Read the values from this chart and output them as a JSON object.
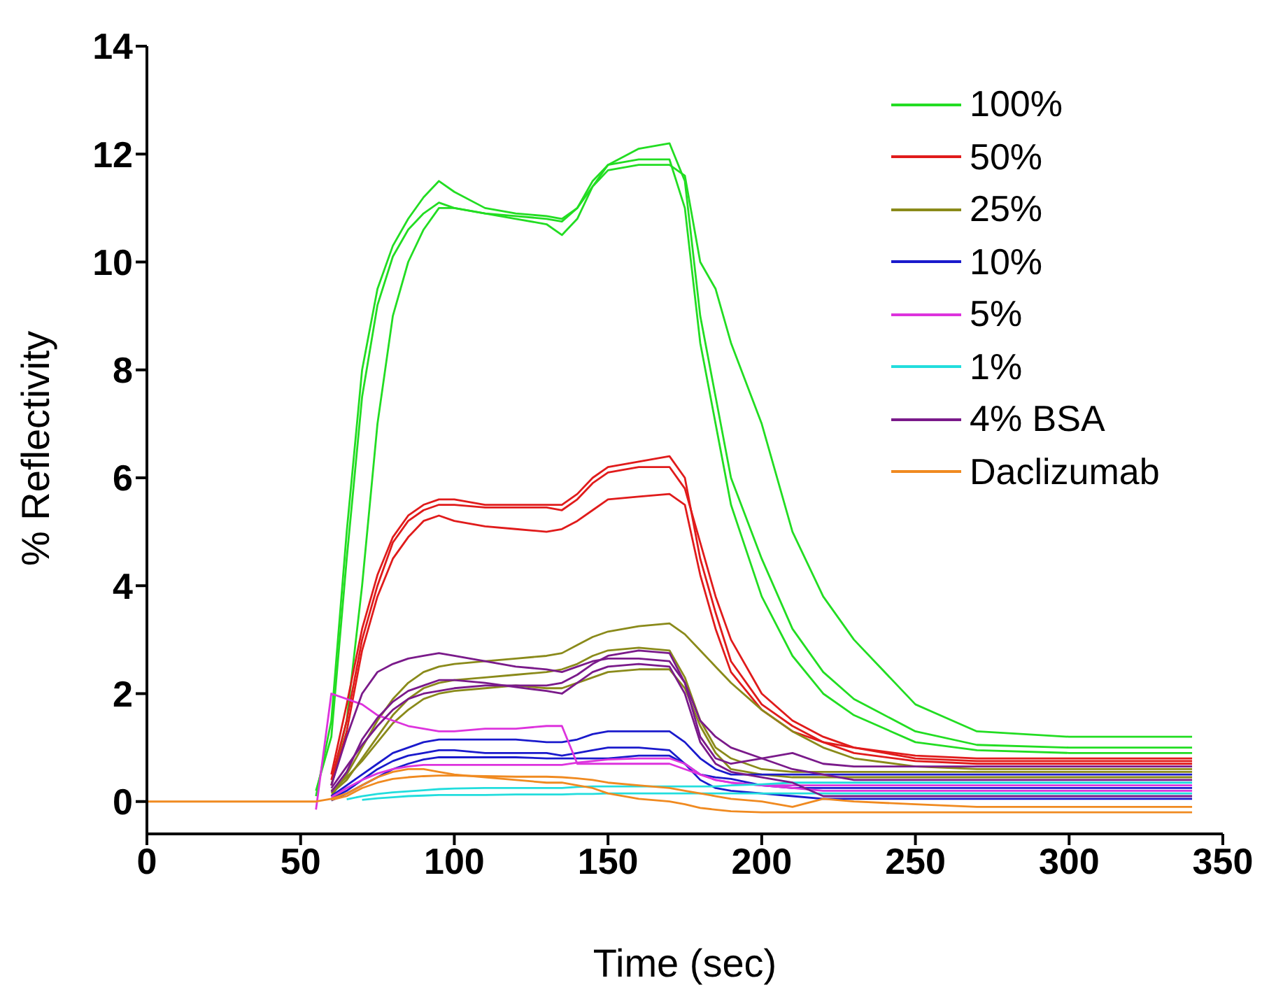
{
  "chart_data": {
    "type": "line",
    "xlabel": "Time (sec)",
    "ylabel": "% Reflectivity",
    "xlim": [
      0,
      350
    ],
    "xticks": [
      0,
      50,
      100,
      150,
      200,
      250,
      300,
      350
    ],
    "ylim": [
      -0.6,
      14
    ],
    "yticks": [
      0,
      2,
      4,
      6,
      8,
      10,
      12,
      14
    ],
    "legend": "top right",
    "line_style": "solid",
    "x": [
      0,
      20,
      40,
      50,
      55,
      60,
      65,
      70,
      75,
      80,
      85,
      90,
      95,
      100,
      110,
      120,
      130,
      135,
      140,
      145,
      150,
      160,
      170,
      175,
      180,
      185,
      190,
      200,
      210,
      220,
      230,
      250,
      270,
      300,
      340
    ],
    "series": [
      {
        "name": "100%",
        "color": "#22dd22",
        "values": [
          null,
          null,
          null,
          null,
          0.1,
          1.5,
          5,
          8,
          9.5,
          10.3,
          10.8,
          11.2,
          11.5,
          11.3,
          11,
          10.9,
          10.85,
          10.8,
          11,
          11.5,
          11.8,
          11.9,
          11.9,
          11,
          8.5,
          7,
          5.5,
          3.8,
          2.7,
          2,
          1.6,
          1.1,
          0.95,
          0.9,
          0.9
        ]
      },
      {
        "color": "#22dd22",
        "values": [
          null,
          null,
          null,
          null,
          0.2,
          1.2,
          4.5,
          7.5,
          9.2,
          10.1,
          10.6,
          10.9,
          11.1,
          11,
          10.9,
          10.8,
          10.7,
          10.5,
          10.8,
          11.4,
          11.8,
          12.1,
          12.2,
          11.5,
          9,
          7.5,
          6,
          4.5,
          3.2,
          2.4,
          1.9,
          1.3,
          1.05,
          1,
          1
        ]
      },
      {
        "color": "#22dd22",
        "values": [
          null,
          null,
          null,
          null,
          null,
          0.3,
          1.5,
          4,
          7,
          9,
          10,
          10.6,
          11,
          11,
          10.9,
          10.85,
          10.8,
          10.75,
          11,
          11.4,
          11.7,
          11.8,
          11.8,
          11.6,
          10,
          9.5,
          8.5,
          7,
          5,
          3.8,
          3,
          1.8,
          1.3,
          1.2,
          1.2
        ]
      },
      {
        "name": "50%",
        "color": "#e01b1b",
        "values": [
          null,
          null,
          null,
          null,
          null,
          0.5,
          1.8,
          3.2,
          4.2,
          4.9,
          5.3,
          5.5,
          5.6,
          5.6,
          5.5,
          5.5,
          5.5,
          5.5,
          5.7,
          6,
          6.2,
          6.3,
          6.4,
          6,
          4.5,
          3.5,
          2.6,
          1.8,
          1.4,
          1.1,
          1,
          0.85,
          0.8,
          0.8,
          0.8
        ]
      },
      {
        "color": "#e01b1b",
        "values": [
          null,
          null,
          null,
          null,
          null,
          0.4,
          1.5,
          3,
          4,
          4.8,
          5.2,
          5.4,
          5.5,
          5.5,
          5.45,
          5.45,
          5.45,
          5.4,
          5.6,
          5.9,
          6.1,
          6.2,
          6.2,
          5.8,
          4.8,
          3.8,
          3,
          2,
          1.5,
          1.2,
          1,
          0.8,
          0.75,
          0.75,
          0.75
        ]
      },
      {
        "color": "#e01b1b",
        "values": [
          null,
          null,
          null,
          null,
          null,
          0.3,
          1.3,
          2.8,
          3.8,
          4.5,
          4.9,
          5.2,
          5.3,
          5.2,
          5.1,
          5.05,
          5,
          5.05,
          5.2,
          5.4,
          5.6,
          5.65,
          5.7,
          5.5,
          4.2,
          3.2,
          2.4,
          1.7,
          1.3,
          1.1,
          0.9,
          0.75,
          0.7,
          0.7,
          0.7
        ]
      },
      {
        "name": "25%",
        "color": "#8a8a1a",
        "values": [
          null,
          null,
          null,
          null,
          null,
          0.1,
          0.5,
          1,
          1.5,
          1.9,
          2.2,
          2.4,
          2.5,
          2.55,
          2.6,
          2.65,
          2.7,
          2.75,
          2.9,
          3.05,
          3.15,
          3.25,
          3.3,
          3.1,
          2.8,
          2.5,
          2.2,
          1.7,
          1.3,
          1,
          0.8,
          0.65,
          0.6,
          0.6,
          0.6
        ]
      },
      {
        "color": "#8a8a1a",
        "values": [
          null,
          null,
          null,
          null,
          null,
          0.15,
          0.4,
          0.8,
          1.2,
          1.6,
          1.9,
          2.1,
          2.2,
          2.25,
          2.3,
          2.35,
          2.4,
          2.45,
          2.55,
          2.7,
          2.8,
          2.85,
          2.8,
          2.3,
          1.5,
          1,
          0.8,
          0.6,
          0.55,
          0.55,
          0.55,
          0.55,
          0.55,
          0.55,
          0.55
        ]
      },
      {
        "color": "#8a8a1a",
        "values": [
          null,
          null,
          null,
          null,
          null,
          0.2,
          0.45,
          0.75,
          1.1,
          1.45,
          1.7,
          1.9,
          2,
          2.05,
          2.1,
          2.15,
          2.1,
          2.1,
          2.2,
          2.3,
          2.4,
          2.45,
          2.45,
          2.1,
          1.4,
          0.9,
          0.6,
          0.5,
          0.45,
          0.45,
          0.45,
          0.45,
          0.45,
          0.45,
          0.45
        ]
      },
      {
        "name": "10%",
        "color": "#1a1acc",
        "values": [
          null,
          null,
          null,
          null,
          null,
          0.1,
          0.3,
          0.5,
          0.7,
          0.9,
          1,
          1.1,
          1.15,
          1.15,
          1.15,
          1.15,
          1.1,
          1.1,
          1.15,
          1.25,
          1.3,
          1.3,
          1.3,
          1.1,
          0.8,
          0.6,
          0.5,
          0.5,
          0.5,
          0.5,
          0.5,
          0.5,
          0.5,
          0.5,
          0.5
        ]
      },
      {
        "color": "#1a1acc",
        "values": [
          null,
          null,
          null,
          null,
          null,
          0.05,
          0.2,
          0.4,
          0.6,
          0.75,
          0.85,
          0.9,
          0.95,
          0.95,
          0.9,
          0.9,
          0.9,
          0.85,
          0.9,
          0.95,
          1,
          1,
          0.95,
          0.7,
          0.4,
          0.25,
          0.2,
          0.15,
          0.1,
          0.05,
          0.05,
          0.05,
          0.05,
          0.05,
          0.05
        ]
      },
      {
        "color": "#1a1acc",
        "values": [
          null,
          null,
          null,
          null,
          null,
          0.02,
          0.15,
          0.3,
          0.45,
          0.6,
          0.7,
          0.78,
          0.82,
          0.82,
          0.82,
          0.82,
          0.8,
          0.8,
          0.8,
          0.8,
          0.8,
          0.85,
          0.85,
          0.7,
          0.5,
          0.45,
          0.42,
          0.3,
          0.25,
          0.25,
          0.25,
          0.25,
          0.25,
          0.25,
          0.25
        ]
      },
      {
        "name": "5%",
        "color": "#dd33dd",
        "values": [
          null,
          null,
          null,
          null,
          -0.15,
          2,
          1.9,
          1.8,
          1.6,
          1.5,
          1.4,
          1.35,
          1.3,
          1.3,
          1.35,
          1.35,
          1.4,
          1.4,
          0.7,
          0.7,
          0.7,
          0.7,
          0.7,
          0.6,
          0.5,
          0.4,
          0.35,
          0.3,
          0.3,
          0.3,
          0.3,
          0.3,
          0.3,
          0.3,
          0.3
        ]
      },
      {
        "color": "#dd33dd",
        "values": [
          null,
          null,
          null,
          null,
          null,
          0.08,
          0.25,
          0.4,
          0.52,
          0.6,
          0.65,
          0.68,
          0.68,
          0.68,
          0.68,
          0.68,
          0.68,
          0.68,
          0.72,
          0.75,
          0.78,
          0.8,
          0.8,
          0.7,
          0.5,
          0.4,
          0.35,
          0.3,
          0.25,
          0.2,
          0.2,
          0.2,
          0.2,
          0.2,
          0.2
        ]
      },
      {
        "name": "1%",
        "color": "#22dddd",
        "values": [
          null,
          null,
          null,
          null,
          null,
          null,
          0.04,
          0.1,
          0.14,
          0.17,
          0.19,
          0.21,
          0.23,
          0.24,
          0.25,
          0.25,
          0.25,
          0.25,
          0.27,
          0.28,
          0.28,
          0.28,
          0.28,
          0.28,
          0.28,
          0.28,
          0.3,
          0.32,
          0.35,
          0.35,
          0.35,
          0.35,
          0.35,
          0.35,
          0.35
        ]
      },
      {
        "color": "#22dddd",
        "values": [
          null,
          null,
          null,
          null,
          null,
          null,
          null,
          0.03,
          0.06,
          0.08,
          0.1,
          0.11,
          0.12,
          0.12,
          0.12,
          0.13,
          0.13,
          0.13,
          0.14,
          0.14,
          0.15,
          0.15,
          0.15,
          0.15,
          0.15,
          0.15,
          0.15,
          0.15,
          0.15,
          0.15,
          0.15,
          0.15,
          0.15,
          0.15,
          0.15
        ]
      },
      {
        "name": "4% BSA",
        "color": "#7a1a8a",
        "values": [
          null,
          null,
          null,
          null,
          null,
          0.3,
          1.2,
          2,
          2.4,
          2.55,
          2.65,
          2.7,
          2.75,
          2.7,
          2.6,
          2.5,
          2.45,
          2.4,
          2.5,
          2.6,
          2.65,
          2.65,
          2.6,
          2.2,
          1.5,
          1.2,
          1,
          0.8,
          0.6,
          0.5,
          0.4,
          0.4,
          0.4,
          0.4,
          0.4
        ]
      },
      {
        "color": "#7a1a8a",
        "values": [
          null,
          null,
          null,
          null,
          null,
          0.25,
          0.65,
          1.05,
          1.4,
          1.7,
          1.9,
          2,
          2.05,
          2.1,
          2.15,
          2.15,
          2.15,
          2.2,
          2.35,
          2.55,
          2.7,
          2.8,
          2.75,
          2.2,
          1.2,
          0.8,
          0.7,
          0.8,
          0.9,
          0.7,
          0.65,
          0.65,
          0.65,
          0.65,
          0.65
        ]
      },
      {
        "color": "#7a1a8a",
        "values": [
          null,
          null,
          null,
          null,
          null,
          0.18,
          0.55,
          1.15,
          1.55,
          1.85,
          2.05,
          2.15,
          2.25,
          2.25,
          2.2,
          2.12,
          2.05,
          2,
          2.2,
          2.4,
          2.5,
          2.55,
          2.5,
          2,
          1.1,
          0.7,
          0.55,
          0.45,
          0.35,
          0.1,
          0.1,
          0.1,
          0.1,
          0.1,
          0.1
        ]
      },
      {
        "color": "#f08a20",
        "values": [
          null,
          null,
          null,
          null,
          null,
          0.03,
          0.1,
          0.25,
          0.35,
          0.42,
          0.45,
          0.47,
          0.48,
          0.48,
          0.47,
          0.46,
          0.46,
          0.45,
          0.43,
          0.4,
          0.35,
          0.3,
          0.25,
          0.2,
          0.15,
          0.1,
          0.05,
          0,
          -0.1,
          0.05,
          0,
          -0.05,
          -0.1,
          -0.1,
          -0.1
        ]
      },
      {
        "name": "Daclizumab",
        "color": "#f08a20",
        "values": [
          0,
          0,
          0,
          0,
          0,
          0.05,
          0.15,
          0.3,
          0.45,
          0.55,
          0.6,
          0.6,
          0.55,
          0.5,
          0.45,
          0.4,
          0.35,
          0.35,
          0.3,
          0.25,
          0.15,
          0.05,
          0,
          -0.05,
          -0.12,
          -0.15,
          -0.18,
          -0.2,
          -0.2,
          -0.2,
          -0.2,
          -0.2,
          -0.2,
          -0.2,
          -0.2
        ]
      }
    ]
  }
}
